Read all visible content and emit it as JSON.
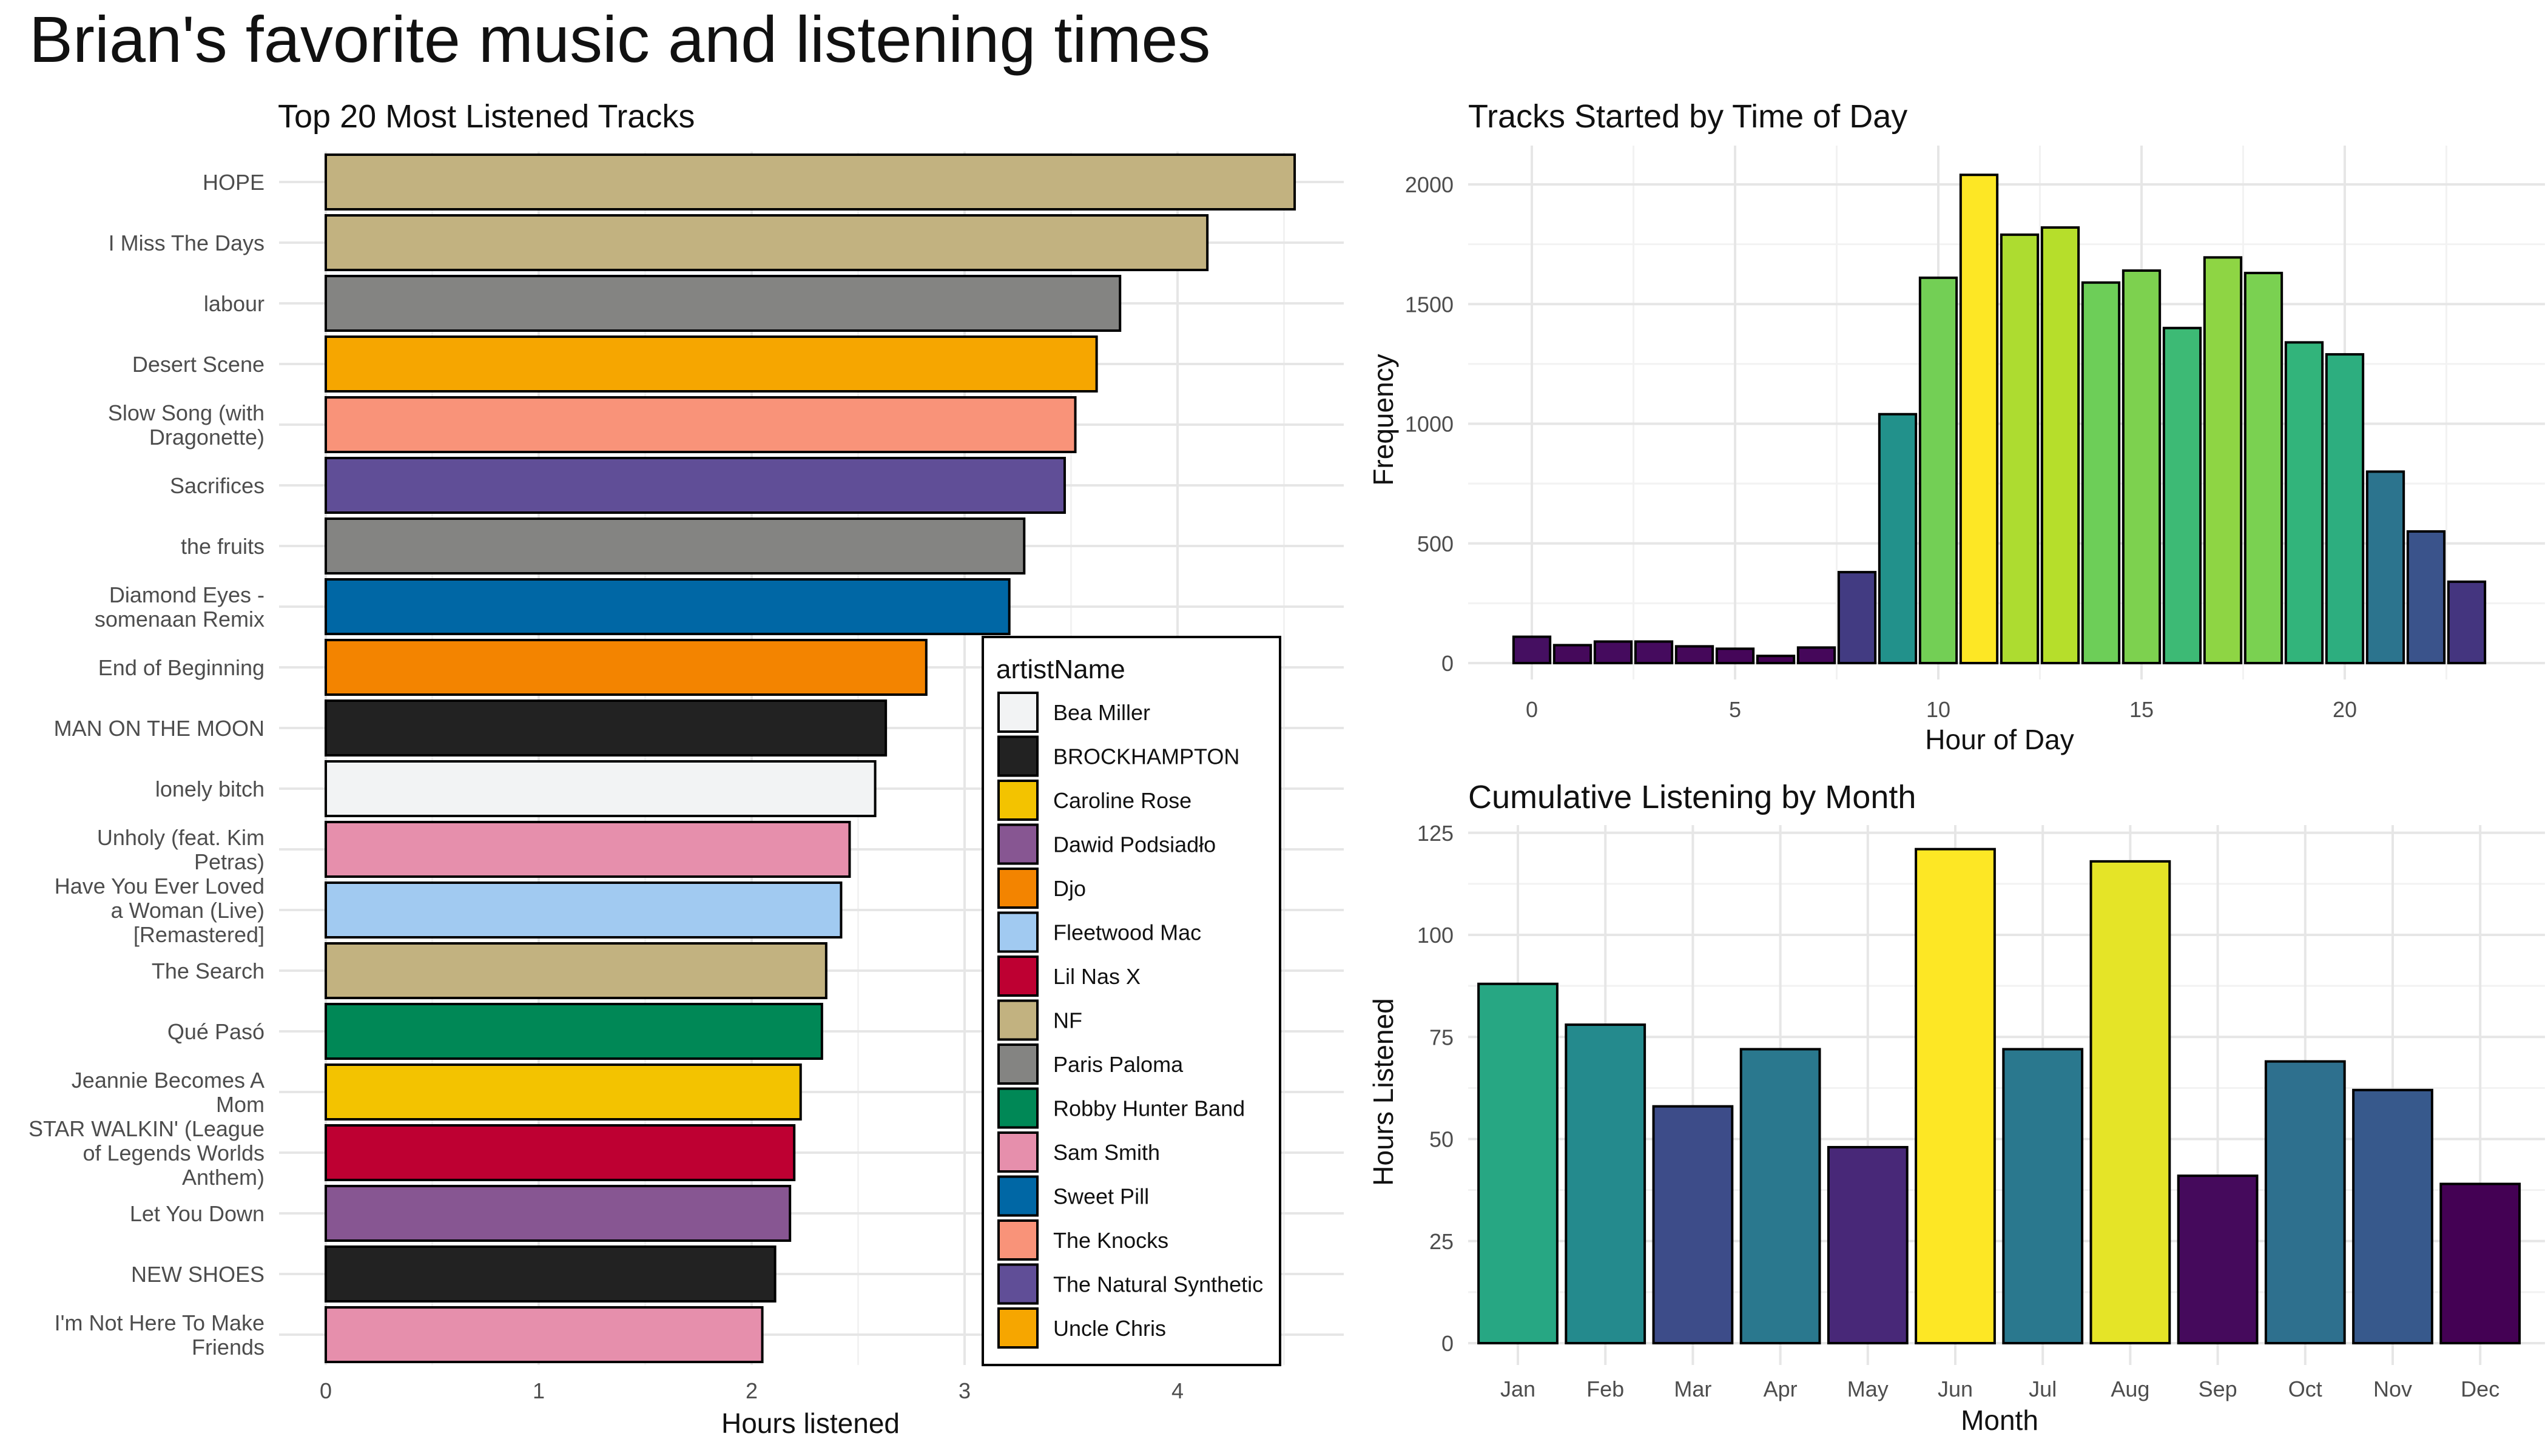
{
  "title": "Brian's favorite music and listening times",
  "chart_data": [
    {
      "type": "bar",
      "orientation": "horizontal",
      "title": "Top 20 Most Listened Tracks",
      "xlabel": "Hours listened",
      "ylabel": "",
      "xlim": [
        0,
        4.7
      ],
      "xticks": [
        0,
        1,
        2,
        3,
        4
      ],
      "grid": true,
      "legend_title": "artistName",
      "legend_position": "inside-bottom-right",
      "legend": [
        {
          "name": "Bea Miller",
          "color": "#F2F3F4"
        },
        {
          "name": "BROCKHAMPTON",
          "color": "#222222"
        },
        {
          "name": "Caroline Rose",
          "color": "#F3C300"
        },
        {
          "name": "Dawid Podsiadło",
          "color": "#875692"
        },
        {
          "name": "Djo",
          "color": "#F38400"
        },
        {
          "name": "Fleetwood Mac",
          "color": "#A1CAF1"
        },
        {
          "name": "Lil Nas X",
          "color": "#BE0032"
        },
        {
          "name": "NF",
          "color": "#C2B280"
        },
        {
          "name": "Paris Paloma",
          "color": "#848482"
        },
        {
          "name": "Robby Hunter Band",
          "color": "#008856"
        },
        {
          "name": "Sam Smith",
          "color": "#E68FAC"
        },
        {
          "name": "Sweet Pill",
          "color": "#0067A5"
        },
        {
          "name": "The Knocks",
          "color": "#F99379"
        },
        {
          "name": "The Natural Synthetic",
          "color": "#604E97"
        },
        {
          "name": "Uncle Chris",
          "color": "#F6A600"
        }
      ],
      "bars": [
        {
          "label": [
            "HOPE"
          ],
          "value": 4.55,
          "artist": "NF"
        },
        {
          "label": [
            "I Miss The Days"
          ],
          "value": 4.14,
          "artist": "NF"
        },
        {
          "label": [
            "labour"
          ],
          "value": 3.73,
          "artist": "Paris Paloma"
        },
        {
          "label": [
            "Desert Scene"
          ],
          "value": 3.62,
          "artist": "Uncle Chris"
        },
        {
          "label": [
            "Slow Song (with",
            "Dragonette)"
          ],
          "value": 3.52,
          "artist": "The Knocks"
        },
        {
          "label": [
            "Sacrifices"
          ],
          "value": 3.47,
          "artist": "The Natural Synthetic"
        },
        {
          "label": [
            "the fruits"
          ],
          "value": 3.28,
          "artist": "Paris Paloma"
        },
        {
          "label": [
            "Diamond Eyes -",
            "somenaan Remix"
          ],
          "value": 3.21,
          "artist": "Sweet Pill"
        },
        {
          "label": [
            "End of Beginning"
          ],
          "value": 2.82,
          "artist": "Djo"
        },
        {
          "label": [
            "MAN ON THE MOON"
          ],
          "value": 2.63,
          "artist": "BROCKHAMPTON"
        },
        {
          "label": [
            "lonely bitch"
          ],
          "value": 2.58,
          "artist": "Bea Miller"
        },
        {
          "label": [
            "Unholy (feat. Kim",
            "Petras)"
          ],
          "value": 2.46,
          "artist": "Sam Smith"
        },
        {
          "label": [
            "Have You Ever Loved",
            "a Woman (Live)",
            "[Remastered]"
          ],
          "value": 2.42,
          "artist": "Fleetwood Mac"
        },
        {
          "label": [
            "The Search"
          ],
          "value": 2.35,
          "artist": "NF"
        },
        {
          "label": [
            "Qué Pasó"
          ],
          "value": 2.33,
          "artist": "Robby Hunter Band"
        },
        {
          "label": [
            "Jeannie Becomes A",
            "Mom"
          ],
          "value": 2.23,
          "artist": "Caroline Rose"
        },
        {
          "label": [
            "STAR WALKIN' (League",
            "of Legends Worlds",
            "Anthem)"
          ],
          "value": 2.2,
          "artist": "Lil Nas X"
        },
        {
          "label": [
            "Let You Down"
          ],
          "value": 2.18,
          "artist": "Dawid Podsiadło"
        },
        {
          "label": [
            "NEW SHOES"
          ],
          "value": 2.11,
          "artist": "BROCKHAMPTON"
        },
        {
          "label": [
            "I'm Not Here To Make",
            "Friends"
          ],
          "value": 2.05,
          "artist": "Sam Smith"
        }
      ]
    },
    {
      "type": "bar",
      "title": "Tracks Started by Time of Day",
      "xlabel": "Hour of Day",
      "ylabel": "Frequency",
      "xlim": [
        -1.5,
        24
      ],
      "ylim": [
        0,
        2150
      ],
      "xticks": [
        0,
        5,
        10,
        15,
        20
      ],
      "yticks": [
        0,
        500,
        1000,
        1500,
        2000
      ],
      "grid": true,
      "fill_scale": "viridis",
      "x": [
        0,
        1,
        2,
        3,
        4,
        5,
        6,
        7,
        8,
        9,
        10,
        11,
        12,
        13,
        14,
        15,
        16,
        17,
        18,
        19,
        20,
        21,
        22,
        23
      ],
      "values": [
        110,
        75,
        90,
        90,
        70,
        60,
        30,
        65,
        380,
        1040,
        1610,
        2040,
        1790,
        1820,
        1590,
        1640,
        1400,
        1695,
        1630,
        1340,
        1290,
        800,
        550,
        340
      ]
    },
    {
      "type": "bar",
      "title": "Cumulative Listening by Month",
      "xlabel": "Month",
      "ylabel": "Hours Listened",
      "ylim": [
        0,
        127
      ],
      "yticks": [
        0,
        25,
        50,
        75,
        100,
        125
      ],
      "grid": true,
      "fill_scale": "viridis",
      "categories": [
        "Jan",
        "Feb",
        "Mar",
        "Apr",
        "May",
        "Jun",
        "Jul",
        "Aug",
        "Sep",
        "Oct",
        "Nov",
        "Dec"
      ],
      "values": [
        88,
        78,
        58,
        72,
        48,
        121,
        72,
        118,
        41,
        69,
        62,
        39
      ]
    }
  ]
}
